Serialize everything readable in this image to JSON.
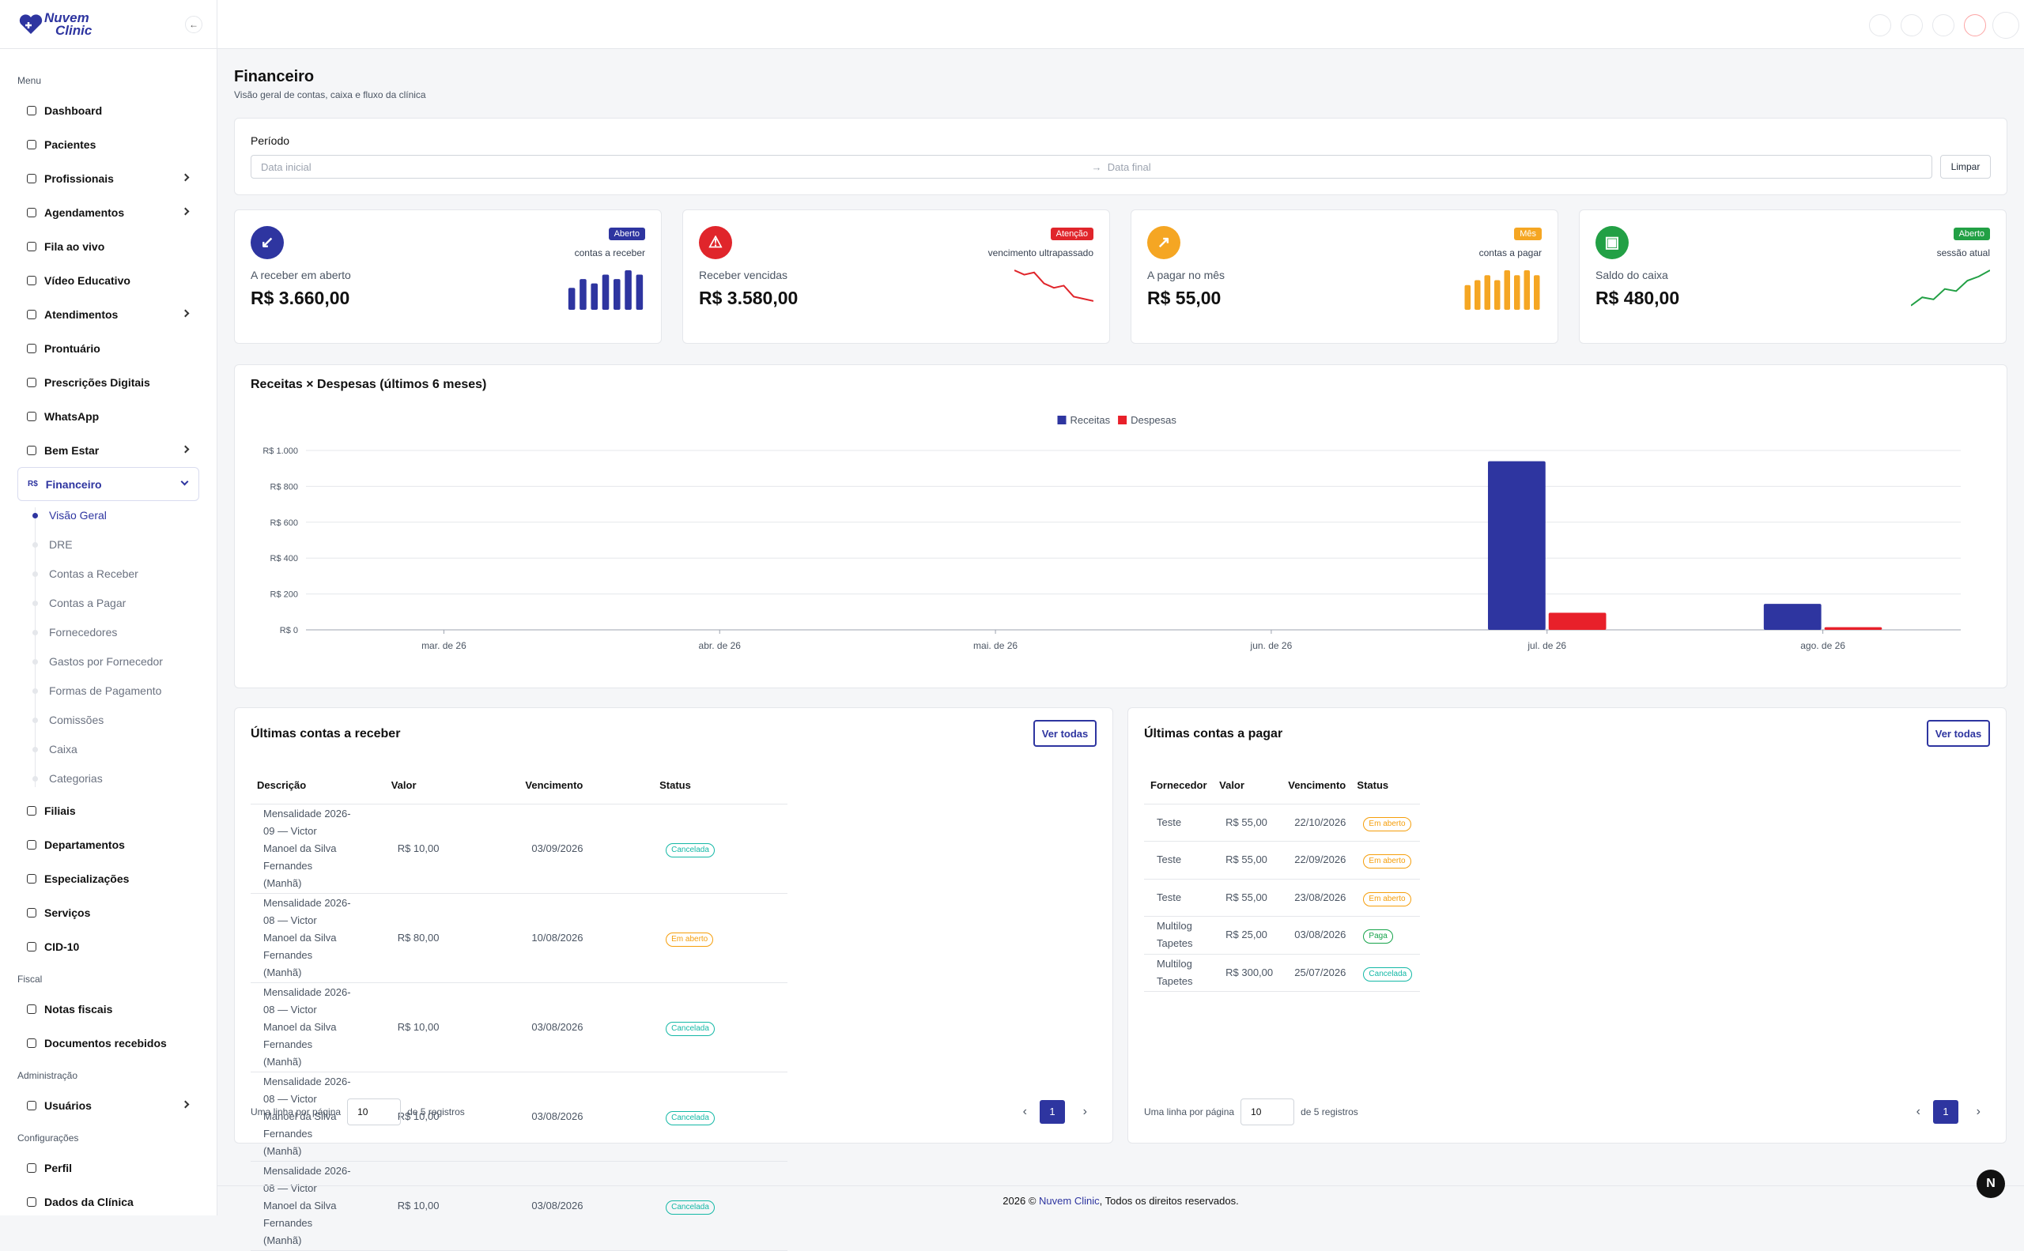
{
  "brand": {
    "name": "Nuvem",
    "sub": "Clinic"
  },
  "sidebar": {
    "sections": [
      {
        "title": "Menu",
        "items": [
          {
            "label": "Dashboard"
          },
          {
            "label": "Pacientes"
          },
          {
            "label": "Profissionais",
            "arrow": true
          },
          {
            "label": "Agendamentos",
            "arrow": true
          },
          {
            "label": "Fila ao vivo"
          },
          {
            "label": "Vídeo Educativo"
          },
          {
            "label": "Atendimentos",
            "arrow": true
          },
          {
            "label": "Prontuário"
          },
          {
            "label": "Prescrições Digitais"
          },
          {
            "label": "WhatsApp"
          },
          {
            "label": "Bem Estar",
            "arrow": true
          },
          {
            "label": "Financeiro",
            "icon_label": "R$",
            "open": true,
            "children": [
              {
                "label": "Visão Geral",
                "active": true
              },
              {
                "label": "DRE"
              },
              {
                "label": "Contas a Receber"
              },
              {
                "label": "Contas a Pagar"
              },
              {
                "label": "Fornecedores"
              },
              {
                "label": "Gastos por Fornecedor"
              },
              {
                "label": "Formas de Pagamento"
              },
              {
                "label": "Comissões"
              },
              {
                "label": "Caixa"
              },
              {
                "label": "Categorias"
              }
            ]
          },
          {
            "label": "Filiais"
          },
          {
            "label": "Departamentos"
          },
          {
            "label": "Especializações"
          },
          {
            "label": "Serviços"
          },
          {
            "label": "CID-10"
          }
        ]
      },
      {
        "title": "Fiscal",
        "items": [
          {
            "label": "Notas fiscais"
          },
          {
            "label": "Documentos recebidos"
          }
        ]
      },
      {
        "title": "Administração",
        "items": [
          {
            "label": "Usuários",
            "arrow": true
          }
        ]
      },
      {
        "title": "Configurações",
        "items": [
          {
            "label": "Perfil"
          },
          {
            "label": "Dados da Clínica"
          }
        ]
      }
    ]
  },
  "header": {
    "title": "Financeiro",
    "subtitle": "Visão geral de contas, caixa e fluxo da clínica"
  },
  "filter": {
    "label": "Período",
    "start_placeholder": "Data inicial",
    "end_placeholder": "Data final",
    "clear": "Limpar"
  },
  "kpis": [
    {
      "label": "A receber em aberto",
      "value": "R$ 3.660,00",
      "badge": "Aberto",
      "caption": "contas a receber",
      "color": "#2e35a0",
      "sparkline": {
        "kind": "bars",
        "values": [
          5,
          7,
          6,
          8,
          7,
          9,
          8
        ]
      }
    },
    {
      "label": "Receber vencidas",
      "value": "R$ 3.580,00",
      "badge": "Atenção",
      "caption": "vencimento ultrapassado",
      "color": "#e0252b",
      "sparkline": {
        "kind": "line",
        "values": [
          9,
          8,
          8.5,
          6,
          5,
          5.5,
          3,
          2.5,
          2
        ]
      }
    },
    {
      "label": "A pagar no mês",
      "value": "R$ 55,00",
      "badge": "Mês",
      "caption": "contas a pagar",
      "color": "#f5a623",
      "sparkline": {
        "kind": "bars",
        "values": [
          5,
          6,
          7,
          6,
          8,
          7,
          8,
          7
        ]
      }
    },
    {
      "label": "Saldo do caixa",
      "value": "R$ 480,00",
      "badge": "Aberto",
      "caption": "sessão atual",
      "color": "#22a045",
      "sparkline": {
        "kind": "line",
        "values": [
          1,
          3,
          2.5,
          5,
          4.5,
          7,
          8,
          9.5
        ]
      }
    }
  ],
  "chart_data": {
    "type": "bar",
    "title": "Receitas × Despesas (últimos 6 meses)",
    "categories": [
      "mar. de 26",
      "abr. de 26",
      "mai. de 26",
      "jun. de 26",
      "jul. de 26",
      "ago. de 26"
    ],
    "series": [
      {
        "name": "Receitas",
        "color": "#2e35a0",
        "values": [
          0,
          0,
          0,
          0,
          940,
          145
        ]
      },
      {
        "name": "Despesas",
        "color": "#e8202a",
        "values": [
          0,
          0,
          0,
          0,
          95,
          15
        ]
      }
    ],
    "ylim": [
      0,
      1000
    ],
    "yticks": [
      {
        "value": 0,
        "label": "R$ 0"
      },
      {
        "value": 200,
        "label": "R$ 200"
      },
      {
        "value": 400,
        "label": "R$ 400"
      },
      {
        "value": 600,
        "label": "R$ 600"
      },
      {
        "value": 800,
        "label": "R$ 800"
      },
      {
        "value": 1000,
        "label": "R$ 1.000"
      }
    ],
    "grid": true,
    "legend": "top"
  },
  "tables": [
    {
      "title": "Últimas contas a receber",
      "button": "Ver todas",
      "columns": [
        "Descrição",
        "Valor",
        "Vencimento",
        "Status"
      ],
      "tall": true,
      "rows": [
        {
          "cells": [
            "Mensalidade 2026-09 — Victor Manoel da Silva Fernandes (Manhã)",
            "R$ 10,00",
            "03/09/2026"
          ],
          "status": "Cancelada",
          "tone": "#14b8a6"
        },
        {
          "cells": [
            "Mensalidade 2026-08 — Victor Manoel da Silva Fernandes (Manhã)",
            "R$ 80,00",
            "10/08/2026"
          ],
          "status": "Em aberto",
          "tone": "#f59e0b"
        },
        {
          "cells": [
            "Mensalidade 2026-08 — Victor Manoel da Silva Fernandes (Manhã)",
            "R$ 10,00",
            "03/08/2026"
          ],
          "status": "Cancelada",
          "tone": "#14b8a6"
        },
        {
          "cells": [
            "Mensalidade 2026-08 — Victor Manoel da Silva Fernandes (Manhã)",
            "R$ 10,00",
            "03/08/2026"
          ],
          "status": "Cancelada",
          "tone": "#14b8a6"
        },
        {
          "cells": [
            "Mensalidade 2026-08 — Victor Manoel da Silva Fernandes (Manhã)",
            "R$ 10,00",
            "03/08/2026"
          ],
          "status": "Cancelada",
          "tone": "#14b8a6"
        }
      ],
      "pager": {
        "per_page_label": "Uma linha por página",
        "per_page": "10",
        "total": "de 5 registros",
        "page": "1"
      }
    },
    {
      "title": "Últimas contas a pagar",
      "button": "Ver todas",
      "columns": [
        "Fornecedor",
        "Valor",
        "Vencimento",
        "Status"
      ],
      "tall": false,
      "rows": [
        {
          "cells": [
            "Teste",
            "R$ 55,00",
            "22/10/2026"
          ],
          "status": "Em aberto",
          "tone": "#f59e0b"
        },
        {
          "cells": [
            "Teste",
            "R$ 55,00",
            "22/09/2026"
          ],
          "status": "Em aberto",
          "tone": "#f59e0b"
        },
        {
          "cells": [
            "Teste",
            "R$ 55,00",
            "23/08/2026"
          ],
          "status": "Em aberto",
          "tone": "#f59e0b"
        },
        {
          "cells": [
            "Multilog Tapetes",
            "R$ 25,00",
            "03/08/2026"
          ],
          "status": "Paga",
          "tone": "#16a34a"
        },
        {
          "cells": [
            "Multilog Tapetes",
            "R$ 300,00",
            "25/07/2026"
          ],
          "status": "Cancelada",
          "tone": "#14b8a6"
        }
      ],
      "pager": {
        "per_page_label": "Uma linha por página",
        "per_page": "10",
        "total": "de 5 registros",
        "page": "1"
      }
    }
  ],
  "footer": {
    "year": "2026 ©",
    "link": "Nuvem Clinic",
    "rest": ", Todos os direitos reservados."
  }
}
